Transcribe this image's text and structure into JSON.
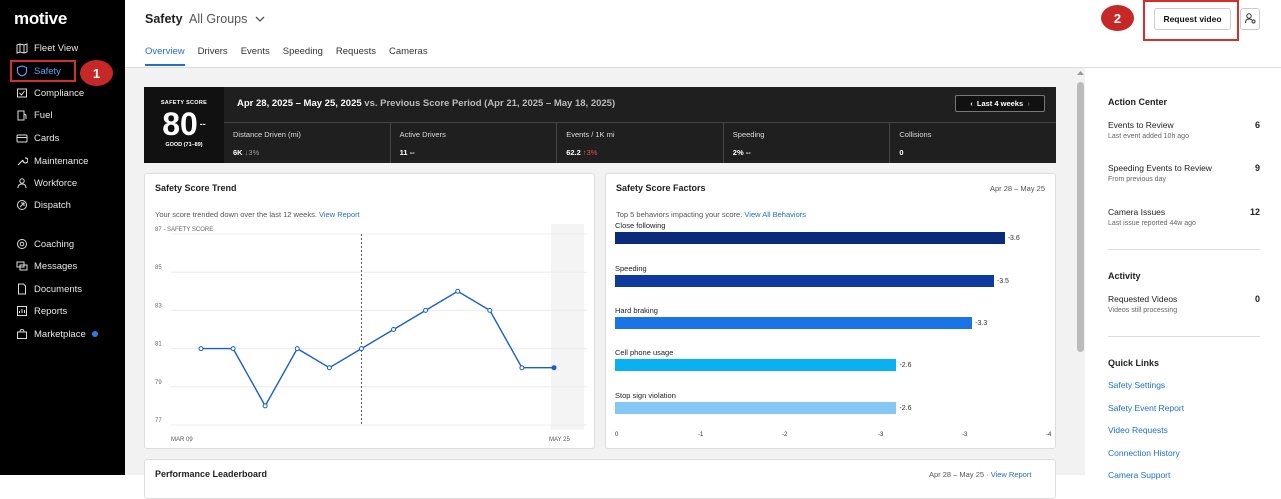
{
  "sidebar": {
    "logo": "motive",
    "items": [
      {
        "label": "Fleet View",
        "icon": "map-icon"
      },
      {
        "label": "Safety",
        "icon": "shield-icon"
      },
      {
        "label": "Compliance",
        "icon": "compliance-icon"
      },
      {
        "label": "Fuel",
        "icon": "fuel-icon"
      },
      {
        "label": "Cards",
        "icon": "card-icon"
      },
      {
        "label": "Maintenance",
        "icon": "wrench-icon"
      },
      {
        "label": "Workforce",
        "icon": "person-icon"
      },
      {
        "label": "Dispatch",
        "icon": "dispatch-icon"
      },
      {
        "label": "Coaching",
        "icon": "coaching-icon"
      },
      {
        "label": "Messages",
        "icon": "message-icon"
      },
      {
        "label": "Documents",
        "icon": "document-icon"
      },
      {
        "label": "Reports",
        "icon": "reports-icon"
      },
      {
        "label": "Marketplace",
        "icon": "marketplace-icon"
      }
    ]
  },
  "annotations": {
    "badge1": "1",
    "badge2": "2"
  },
  "header": {
    "title": "Safety",
    "group": "All Groups",
    "tabs": [
      "Overview",
      "Drivers",
      "Events",
      "Speeding",
      "Requests",
      "Cameras"
    ],
    "request_button": "Request video"
  },
  "score": {
    "label": "SAFETY SCORE",
    "value": "80",
    "trend": "--",
    "rating": "GOOD (71–89)",
    "range": "Apr 28, 2025 – May 25, 2025",
    "compare": " vs. Previous Score Period (Apr 21, 2025 – May 18, 2025)",
    "period_button": "Last 4 weeks",
    "metrics": [
      {
        "label": "Distance Driven (mi)",
        "value": "6K",
        "change": " ↓3%"
      },
      {
        "label": "Active Drivers",
        "value": "11",
        "change": " --"
      },
      {
        "label": "Events / 1K mi",
        "value": "62.2",
        "change": " ↑3%"
      },
      {
        "label": "Speeding",
        "value": "2%",
        "change": " --"
      },
      {
        "label": "Collisions",
        "value": "0",
        "change": ""
      }
    ]
  },
  "trend": {
    "title": "Safety Score Trend",
    "sub": "Your score trended down over the last 12 weeks.",
    "link": "View Report"
  },
  "factors": {
    "title": "Safety Score Factors",
    "date": "Apr 28 – May 25",
    "sub": "Top 5 behaviors impacting your score.",
    "link": "View All Behaviors"
  },
  "leaderboard": {
    "title": "Performance Leaderboard",
    "date": "Apr 28 – May 25",
    "sep": "·",
    "link": "View Report"
  },
  "chart_data": [
    {
      "type": "line",
      "title": "Safety Score Trend",
      "ylabel": "SAFETY SCORE",
      "ylim": [
        77,
        87
      ],
      "yticks": [
        "87 - SAFETY SCORE",
        "85",
        "83",
        "81",
        "79",
        "77"
      ],
      "x_start_label": "MAR 09",
      "x_end_label": "MAY 25",
      "values": [
        81,
        81,
        78,
        81,
        80,
        81,
        82,
        83,
        84,
        83,
        80,
        80
      ]
    },
    {
      "type": "bar",
      "title": "Safety Score Factors",
      "categories": [
        "Close following",
        "Speeding",
        "Hard braking",
        "Cell phone usage",
        "Stop sign violation"
      ],
      "values": [
        -3.6,
        -3.5,
        -3.3,
        -2.6,
        -2.6
      ],
      "labels": [
        "-3.6",
        "-3.5",
        "-3.3",
        "-2.6",
        "-2.6"
      ],
      "colors": [
        "#0a2a7a",
        "#0e3a9e",
        "#1a74e8",
        "#09b1f3",
        "#86c8f5"
      ],
      "xticks": [
        "0",
        "-1",
        "-2",
        "-3",
        "-3",
        "-4"
      ],
      "xlim": [
        0,
        -4
      ]
    }
  ],
  "right_panel": {
    "action_center": "Action Center",
    "items": [
      {
        "label": "Events to Review",
        "sub": "Last event added 10h ago",
        "count": "6"
      },
      {
        "label": "Speeding Events to Review",
        "sub": "From previous day",
        "count": "9"
      },
      {
        "label": "Camera Issues",
        "sub": "Last issue reported 44w ago",
        "count": "12"
      }
    ],
    "activity": "Activity",
    "activity_item": {
      "label": "Requested Videos",
      "sub": "Videos still processing",
      "count": "0"
    },
    "quick_links": "Quick Links",
    "links": [
      "Safety Settings",
      "Safety Event Report",
      "Video Requests",
      "Connection History",
      "Camera Support"
    ]
  }
}
